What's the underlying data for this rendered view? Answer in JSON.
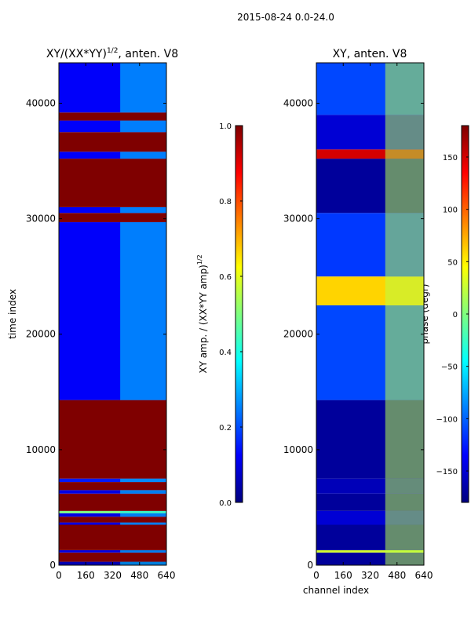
{
  "suptitle": "2015-08-24 0.0-24.0",
  "colors": {
    "jet": [
      "#00007f",
      "#0000ff",
      "#007fff",
      "#00ffff",
      "#7fff7f",
      "#ffff00",
      "#ff7f00",
      "#ff0000",
      "#7f0000"
    ],
    "frame": "#000000",
    "background": "#ffffff"
  },
  "chart_data": [
    {
      "type": "heatmap",
      "title": "XY/(XX*YY)^(1/2), anten. V8",
      "title_base": "XY/(XX*YY)",
      "title_exp": "1/2",
      "title_rest": ", anten. V8",
      "xlabel": "",
      "ylabel": "time index",
      "x_range": [
        0,
        640
      ],
      "y_range": [
        0,
        43500
      ],
      "x_ticks": [
        0,
        160,
        320,
        480,
        640
      ],
      "y_ticks": [
        0,
        10000,
        20000,
        30000,
        40000
      ],
      "colorbar": {
        "label_base": "XY amp. / (XX*YY amp)",
        "label_exp": "1/2",
        "range": [
          0.0,
          1.0
        ],
        "ticks": [
          "0.0",
          "0.2",
          "0.4",
          "0.6",
          "0.8",
          "1.0"
        ],
        "tick_values": [
          0.0,
          0.2,
          0.4,
          0.6,
          0.8,
          1.0
        ]
      },
      "bands": [
        {
          "from": 0,
          "to": 300,
          "value": 0.05
        },
        {
          "from": 300,
          "to": 1100,
          "value": 1.0
        },
        {
          "from": 1100,
          "to": 1300,
          "value": 0.1
        },
        {
          "from": 1300,
          "to": 3500,
          "value": 1.0
        },
        {
          "from": 3500,
          "to": 3700,
          "value": 0.1
        },
        {
          "from": 3700,
          "to": 4200,
          "value": 1.0
        },
        {
          "from": 4200,
          "to": 4500,
          "value": 0.1
        },
        {
          "from": 4500,
          "to": 4700,
          "value": 0.5
        },
        {
          "from": 4700,
          "to": 6200,
          "value": 1.0
        },
        {
          "from": 6200,
          "to": 6500,
          "value": 0.1
        },
        {
          "from": 6500,
          "to": 7200,
          "value": 1.0
        },
        {
          "from": 7200,
          "to": 7500,
          "value": 0.15
        },
        {
          "from": 7500,
          "to": 14300,
          "value": 1.0
        },
        {
          "from": 14300,
          "to": 29700,
          "value": 0.12
        },
        {
          "from": 29700,
          "to": 30500,
          "value": 1.0
        },
        {
          "from": 30500,
          "to": 31000,
          "value": 0.12
        },
        {
          "from": 31000,
          "to": 35200,
          "value": 1.0
        },
        {
          "from": 35200,
          "to": 35800,
          "value": 0.12
        },
        {
          "from": 35800,
          "to": 37500,
          "value": 1.0
        },
        {
          "from": 37500,
          "to": 38500,
          "value": 0.12
        },
        {
          "from": 38500,
          "to": 39200,
          "value": 1.0
        },
        {
          "from": 39200,
          "to": 43500,
          "value": 0.12
        }
      ],
      "active_channels": [
        365,
        640
      ],
      "active_value": 0.35
    },
    {
      "type": "heatmap",
      "title": "XY, anten. V8",
      "xlabel": "channel index",
      "ylabel": "",
      "x_range": [
        0,
        640
      ],
      "y_range": [
        0,
        43500
      ],
      "x_ticks": [
        0,
        160,
        320,
        480,
        640
      ],
      "y_ticks": [
        0,
        10000,
        20000,
        30000,
        40000
      ],
      "colorbar": {
        "label": "phase (degr)",
        "range": [
          -180,
          180
        ],
        "ticks": [
          "150",
          "100",
          "50",
          "0",
          "−50",
          "−100",
          "−150"
        ],
        "tick_values": [
          150,
          100,
          50,
          0,
          -50,
          -100,
          -150
        ]
      },
      "bands": [
        {
          "from": 0,
          "to": 1100,
          "value": -170
        },
        {
          "from": 1100,
          "to": 1300,
          "value": 30
        },
        {
          "from": 1300,
          "to": 3500,
          "value": -170
        },
        {
          "from": 3500,
          "to": 4700,
          "value": -150
        },
        {
          "from": 4700,
          "to": 6200,
          "value": -170
        },
        {
          "from": 6200,
          "to": 7500,
          "value": -160
        },
        {
          "from": 7500,
          "to": 14300,
          "value": -170
        },
        {
          "from": 14300,
          "to": 22500,
          "value": -110
        },
        {
          "from": 22500,
          "to": 25000,
          "value": 60
        },
        {
          "from": 25000,
          "to": 30500,
          "value": -115
        },
        {
          "from": 30500,
          "to": 35200,
          "value": -170
        },
        {
          "from": 35200,
          "to": 36000,
          "value": 150
        },
        {
          "from": 36000,
          "to": 39000,
          "value": -150
        },
        {
          "from": 39000,
          "to": 43500,
          "value": -110
        }
      ],
      "active_channels": [
        410,
        640
      ],
      "active_value": 20
    }
  ]
}
